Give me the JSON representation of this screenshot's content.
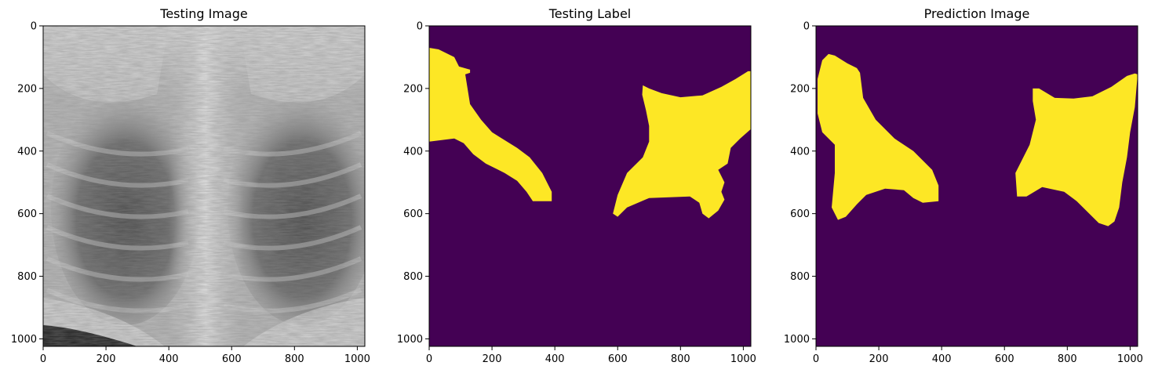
{
  "chart_data": [
    {
      "type": "image",
      "title": "Testing Image",
      "content": "chest x-ray (grayscale)",
      "xlim": [
        0,
        1024
      ],
      "ylim": [
        1024,
        0
      ],
      "xticks": [
        0,
        200,
        400,
        600,
        800,
        1000
      ],
      "yticks": [
        0,
        200,
        400,
        600,
        800,
        1000
      ]
    },
    {
      "type": "image",
      "title": "Testing Label",
      "content": "binary segmentation mask (viridis colormap)",
      "colors": {
        "background": "#440154",
        "foreground": "#fde725"
      },
      "xlim": [
        0,
        1024
      ],
      "ylim": [
        1024,
        0
      ],
      "xticks": [
        0,
        200,
        400,
        600,
        800,
        1000
      ],
      "yticks": [
        0,
        200,
        400,
        600,
        800,
        1000
      ]
    },
    {
      "type": "image",
      "title": "Prediction Image",
      "content": "predicted segmentation mask (viridis colormap)",
      "colors": {
        "background": "#440154",
        "foreground": "#fde725"
      },
      "xlim": [
        0,
        1024
      ],
      "ylim": [
        1024,
        0
      ],
      "xticks": [
        0,
        200,
        400,
        600,
        800,
        1000
      ],
      "yticks": [
        0,
        200,
        400,
        600,
        800,
        1000
      ]
    }
  ],
  "regions": {
    "label": [
      {
        "name": "label-lung-left",
        "points": [
          [
            0,
            70
          ],
          [
            30,
            75
          ],
          [
            80,
            100
          ],
          [
            95,
            130
          ],
          [
            130,
            140
          ],
          [
            130,
            150
          ],
          [
            115,
            155
          ],
          [
            130,
            250
          ],
          [
            165,
            300
          ],
          [
            200,
            340
          ],
          [
            280,
            390
          ],
          [
            320,
            420
          ],
          [
            360,
            470
          ],
          [
            390,
            530
          ],
          [
            390,
            560
          ],
          [
            330,
            560
          ],
          [
            310,
            530
          ],
          [
            280,
            495
          ],
          [
            240,
            470
          ],
          [
            180,
            440
          ],
          [
            140,
            410
          ],
          [
            110,
            375
          ],
          [
            80,
            360
          ],
          [
            0,
            370
          ]
        ]
      },
      {
        "name": "label-lung-right",
        "points": [
          [
            680,
            190
          ],
          [
            700,
            200
          ],
          [
            740,
            215
          ],
          [
            800,
            228
          ],
          [
            870,
            222
          ],
          [
            930,
            195
          ],
          [
            975,
            170
          ],
          [
            1015,
            145
          ],
          [
            1024,
            145
          ],
          [
            1024,
            330
          ],
          [
            990,
            360
          ],
          [
            960,
            390
          ],
          [
            950,
            440
          ],
          [
            920,
            460
          ],
          [
            930,
            480
          ],
          [
            940,
            500
          ],
          [
            930,
            530
          ],
          [
            940,
            555
          ],
          [
            920,
            590
          ],
          [
            890,
            615
          ],
          [
            870,
            600
          ],
          [
            860,
            565
          ],
          [
            830,
            545
          ],
          [
            700,
            550
          ],
          [
            630,
            580
          ],
          [
            600,
            610
          ],
          [
            585,
            600
          ],
          [
            600,
            540
          ],
          [
            630,
            470
          ],
          [
            680,
            420
          ],
          [
            700,
            370
          ],
          [
            700,
            320
          ],
          [
            690,
            270
          ],
          [
            678,
            220
          ]
        ]
      }
    ],
    "prediction": [
      {
        "name": "prediction-lung-left",
        "points": [
          [
            5,
            170
          ],
          [
            20,
            110
          ],
          [
            40,
            90
          ],
          [
            60,
            95
          ],
          [
            100,
            120
          ],
          [
            130,
            135
          ],
          [
            140,
            150
          ],
          [
            150,
            230
          ],
          [
            190,
            300
          ],
          [
            250,
            360
          ],
          [
            310,
            400
          ],
          [
            370,
            460
          ],
          [
            390,
            510
          ],
          [
            390,
            560
          ],
          [
            340,
            565
          ],
          [
            310,
            550
          ],
          [
            280,
            525
          ],
          [
            220,
            520
          ],
          [
            160,
            540
          ],
          [
            130,
            570
          ],
          [
            95,
            610
          ],
          [
            70,
            620
          ],
          [
            50,
            580
          ],
          [
            60,
            470
          ],
          [
            60,
            380
          ],
          [
            20,
            340
          ],
          [
            5,
            280
          ]
        ]
      },
      {
        "name": "prediction-lung-right",
        "points": [
          [
            690,
            200
          ],
          [
            710,
            200
          ],
          [
            760,
            230
          ],
          [
            820,
            232
          ],
          [
            880,
            225
          ],
          [
            940,
            195
          ],
          [
            990,
            160
          ],
          [
            1015,
            152
          ],
          [
            1024,
            155
          ],
          [
            1015,
            260
          ],
          [
            1000,
            340
          ],
          [
            990,
            420
          ],
          [
            975,
            500
          ],
          [
            965,
            580
          ],
          [
            950,
            625
          ],
          [
            930,
            640
          ],
          [
            900,
            630
          ],
          [
            870,
            600
          ],
          [
            830,
            560
          ],
          [
            790,
            530
          ],
          [
            720,
            515
          ],
          [
            670,
            545
          ],
          [
            640,
            545
          ],
          [
            635,
            470
          ],
          [
            680,
            380
          ],
          [
            700,
            300
          ],
          [
            690,
            240
          ]
        ]
      }
    ]
  }
}
